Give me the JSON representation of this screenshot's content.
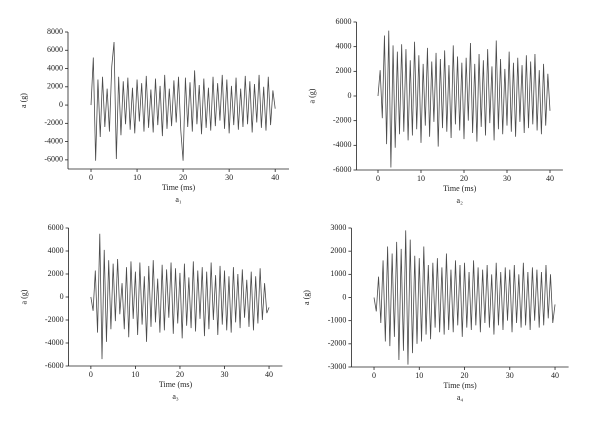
{
  "chart_data": [
    {
      "type": "line",
      "caption": "a₁",
      "x_label": "Time (ms)",
      "y_label": "a (g)",
      "color": "#4a4a4a",
      "grid": false,
      "xlim": [
        -5,
        43
      ],
      "xticks": [
        0,
        10,
        20,
        30,
        40
      ],
      "ylim": [
        -7000,
        8000
      ],
      "yticks": [
        -6000,
        -4000,
        -2000,
        0,
        2000,
        4000,
        6000,
        8000
      ],
      "x": [
        0,
        0.5,
        1,
        1.5,
        2,
        2.5,
        3,
        3.5,
        4,
        4.5,
        5,
        5.5,
        6,
        6.5,
        7,
        7.5,
        8,
        8.5,
        9,
        9.5,
        10,
        10.5,
        11,
        11.5,
        12,
        12.5,
        13,
        13.5,
        14,
        14.5,
        15,
        15.5,
        16,
        16.5,
        17,
        17.5,
        18,
        18.5,
        19,
        19.5,
        20,
        20.5,
        21,
        21.5,
        22,
        22.5,
        23,
        23.5,
        24,
        24.5,
        25,
        25.5,
        26,
        26.5,
        27,
        27.5,
        28,
        28.5,
        29,
        29.5,
        30,
        30.5,
        31,
        31.5,
        32,
        32.5,
        33,
        33.5,
        34,
        34.5,
        35,
        35.5,
        36,
        36.5,
        37,
        37.5,
        38,
        38.5,
        39,
        39.5,
        40
      ],
      "values": [
        0,
        5200,
        -6100,
        2800,
        -3500,
        3100,
        -2400,
        1800,
        -2900,
        4200,
        6900,
        -5900,
        3100,
        -3300,
        2600,
        -2100,
        3000,
        -2700,
        1900,
        -3100,
        2800,
        -1800,
        2400,
        -2900,
        3200,
        -2500,
        1700,
        -3000,
        2900,
        -2200,
        2100,
        -3400,
        3300,
        -2600,
        1800,
        -2300,
        2700,
        -1900,
        3100,
        -2800,
        -6100,
        3000,
        -2400,
        2500,
        -2900,
        3800,
        -2100,
        2200,
        -3200,
        2900,
        -2500,
        1900,
        -2800,
        3100,
        -2300,
        2400,
        -1700,
        3300,
        -2600,
        2800,
        -3100,
        2100,
        -2200,
        3000,
        -2700,
        1800,
        -2400,
        3200,
        -2100,
        2600,
        -3000,
        2300,
        -1900,
        3300,
        -2500,
        2000,
        -2800,
        3100,
        -2200,
        1600,
        -400
      ]
    },
    {
      "type": "line",
      "caption": "a₂",
      "x_label": "Time (ms)",
      "y_label": "a (g)",
      "color": "#4a4a4a",
      "grid": false,
      "xlim": [
        -5,
        43
      ],
      "xticks": [
        0,
        10,
        20,
        30,
        40
      ],
      "ylim": [
        -6000,
        6000
      ],
      "yticks": [
        -6000,
        -4000,
        -2000,
        0,
        2000,
        4000,
        6000
      ],
      "x": [
        0,
        0.5,
        1,
        1.5,
        2,
        2.5,
        3,
        3.5,
        4,
        4.5,
        5,
        5.5,
        6,
        6.5,
        7,
        7.5,
        8,
        8.5,
        9,
        9.5,
        10,
        10.5,
        11,
        11.5,
        12,
        12.5,
        13,
        13.5,
        14,
        14.5,
        15,
        15.5,
        16,
        16.5,
        17,
        17.5,
        18,
        18.5,
        19,
        19.5,
        20,
        20.5,
        21,
        21.5,
        22,
        22.5,
        23,
        23.5,
        24,
        24.5,
        25,
        25.5,
        26,
        26.5,
        27,
        27.5,
        28,
        28.5,
        29,
        29.5,
        30,
        30.5,
        31,
        31.5,
        32,
        32.5,
        33,
        33.5,
        34,
        34.5,
        35,
        35.5,
        36,
        36.5,
        37,
        37.5,
        38,
        38.5,
        39,
        39.5,
        40
      ],
      "values": [
        0,
        2100,
        -1800,
        4900,
        -3900,
        5300,
        -5800,
        4100,
        -4200,
        3600,
        -3100,
        4200,
        -2900,
        3800,
        -3600,
        2900,
        -3200,
        4400,
        -2700,
        3300,
        -3800,
        2600,
        -2400,
        3900,
        -3300,
        2800,
        -2100,
        3500,
        -4100,
        3000,
        -2600,
        3700,
        -2900,
        2500,
        -3400,
        4100,
        -2300,
        3200,
        -2800,
        2700,
        -3500,
        3100,
        -2000,
        4300,
        -3000,
        2600,
        -3700,
        3400,
        -2500,
        2900,
        -3200,
        3800,
        -2200,
        2400,
        -3600,
        4500,
        -2700,
        3000,
        -3100,
        2200,
        -2400,
        3600,
        -2900,
        2700,
        -3300,
        3100,
        -2100,
        2500,
        -3000,
        3300,
        -2600,
        2800,
        -2300,
        3400,
        -2800,
        2100,
        -3100,
        2600,
        -2400,
        1800,
        -1200
      ]
    },
    {
      "type": "line",
      "caption": "a₃",
      "x_label": "Time (ms)",
      "y_label": "a (g)",
      "color": "#4a4a4a",
      "grid": false,
      "xlim": [
        -5,
        43
      ],
      "xticks": [
        0,
        10,
        20,
        30,
        40
      ],
      "ylim": [
        -6000,
        6000
      ],
      "yticks": [
        -6000,
        -4000,
        -2000,
        0,
        2000,
        4000,
        6000
      ],
      "x": [
        0,
        0.5,
        1,
        1.5,
        2,
        2.5,
        3,
        3.5,
        4,
        4.5,
        5,
        5.5,
        6,
        6.5,
        7,
        7.5,
        8,
        8.5,
        9,
        9.5,
        10,
        10.5,
        11,
        11.5,
        12,
        12.5,
        13,
        13.5,
        14,
        14.5,
        15,
        15.5,
        16,
        16.5,
        17,
        17.5,
        18,
        18.5,
        19,
        19.5,
        20,
        20.5,
        21,
        21.5,
        22,
        22.5,
        23,
        23.5,
        24,
        24.5,
        25,
        25.5,
        26,
        26.5,
        27,
        27.5,
        28,
        28.5,
        29,
        29.5,
        30,
        30.5,
        31,
        31.5,
        32,
        32.5,
        33,
        33.5,
        34,
        34.5,
        35,
        35.5,
        36,
        36.5,
        37,
        37.5,
        38,
        38.5,
        39,
        39.5,
        40
      ],
      "values": [
        0,
        -1200,
        2300,
        -3100,
        5500,
        -5400,
        4100,
        -3900,
        3200,
        -2800,
        2900,
        -2100,
        3300,
        -1500,
        1200,
        -2800,
        2600,
        -3500,
        3100,
        -1900,
        2200,
        -3300,
        3000,
        -2400,
        1800,
        -3900,
        2700,
        -2600,
        3200,
        -2200,
        1600,
        -3100,
        2800,
        -2900,
        2400,
        -1800,
        3000,
        -3200,
        2500,
        -2300,
        2100,
        -3600,
        2900,
        -2500,
        1700,
        -2700,
        3100,
        -3000,
        2300,
        -1900,
        2600,
        -3400,
        2200,
        -2800,
        3000,
        -2000,
        1900,
        -3300,
        2700,
        -2400,
        2300,
        -2900,
        1800,
        -3100,
        2600,
        -2200,
        2000,
        -2700,
        2400,
        -1800,
        1500,
        -2600,
        2200,
        -2900,
        1800,
        -2300,
        2500,
        -2000,
        1200,
        -1400,
        -900
      ]
    },
    {
      "type": "line",
      "caption": "a₄",
      "x_label": "Time (ms)",
      "y_label": "a (g)",
      "color": "#4a4a4a",
      "grid": false,
      "xlim": [
        -5,
        43
      ],
      "xticks": [
        0,
        10,
        20,
        30,
        40
      ],
      "ylim": [
        -3000,
        3000
      ],
      "yticks": [
        -3000,
        -2000,
        -1000,
        0,
        1000,
        2000,
        3000
      ],
      "x": [
        0,
        0.5,
        1,
        1.5,
        2,
        2.5,
        3,
        3.5,
        4,
        4.5,
        5,
        5.5,
        6,
        6.5,
        7,
        7.5,
        8,
        8.5,
        9,
        9.5,
        10,
        10.5,
        11,
        11.5,
        12,
        12.5,
        13,
        13.5,
        14,
        14.5,
        15,
        15.5,
        16,
        16.5,
        17,
        17.5,
        18,
        18.5,
        19,
        19.5,
        20,
        20.5,
        21,
        21.5,
        22,
        22.5,
        23,
        23.5,
        24,
        24.5,
        25,
        25.5,
        26,
        26.5,
        27,
        27.5,
        28,
        28.5,
        29,
        29.5,
        30,
        30.5,
        31,
        31.5,
        32,
        32.5,
        33,
        33.5,
        34,
        34.5,
        35,
        35.5,
        36,
        36.5,
        37,
        37.5,
        38,
        38.5,
        39,
        39.5,
        40
      ],
      "values": [
        0,
        -600,
        900,
        -1100,
        1600,
        -1900,
        2200,
        -2100,
        1900,
        -1700,
        2400,
        -2700,
        2100,
        -2300,
        2900,
        -2900,
        2500,
        -2400,
        1800,
        -2000,
        1700,
        -1900,
        2200,
        -1600,
        1400,
        -1800,
        1500,
        -1300,
        1700,
        -1500,
        1300,
        -1600,
        1900,
        -1400,
        1200,
        -1500,
        1600,
        -1200,
        1400,
        -1700,
        1500,
        -1300,
        1100,
        -1400,
        1600,
        -1200,
        1300,
        -1500,
        1200,
        -1100,
        1400,
        -1300,
        1000,
        -1600,
        1500,
        -1200,
        1100,
        -1400,
        1300,
        -1000,
        1200,
        -1500,
        1400,
        -1100,
        1000,
        -1300,
        1500,
        -1200,
        1100,
        -1400,
        1300,
        -1000,
        1200,
        -1300,
        1100,
        -1200,
        1400,
        -900,
        1000,
        -1100,
        -300
      ]
    }
  ]
}
